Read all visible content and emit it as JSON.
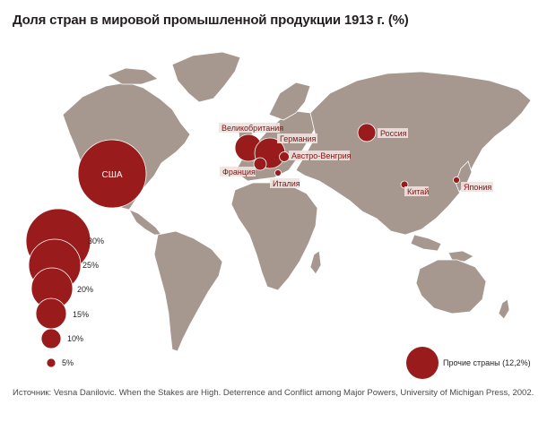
{
  "title": "Доля стран в мировой промышленной продукции 1913 г. (%)",
  "source": "Источник: Vesna Danilovic. When the Stakes are High. Deterrence and Conflict among Major Powers, University of Michigan Press, 2002.",
  "colors": {
    "land": "#a6988f",
    "land_stroke": "#ffffff",
    "bubble": "#9a1b1b",
    "label": "#7a1515"
  },
  "countries": [
    {
      "id": "usa",
      "name": "США"
    },
    {
      "id": "uk",
      "name": "Великобритания"
    },
    {
      "id": "germany",
      "name": "Германия"
    },
    {
      "id": "austria",
      "name": "Австро-Венгрия"
    },
    {
      "id": "france",
      "name": "Франция"
    },
    {
      "id": "italy",
      "name": "Италия"
    },
    {
      "id": "russia",
      "name": "Россия"
    },
    {
      "id": "china",
      "name": "Китай"
    },
    {
      "id": "japan",
      "name": "Япония"
    }
  ],
  "legend": {
    "scale": [
      "30%",
      "25%",
      "20%",
      "15%",
      "10%",
      "5%"
    ],
    "other": "Прочие страны (12,2%)"
  }
}
